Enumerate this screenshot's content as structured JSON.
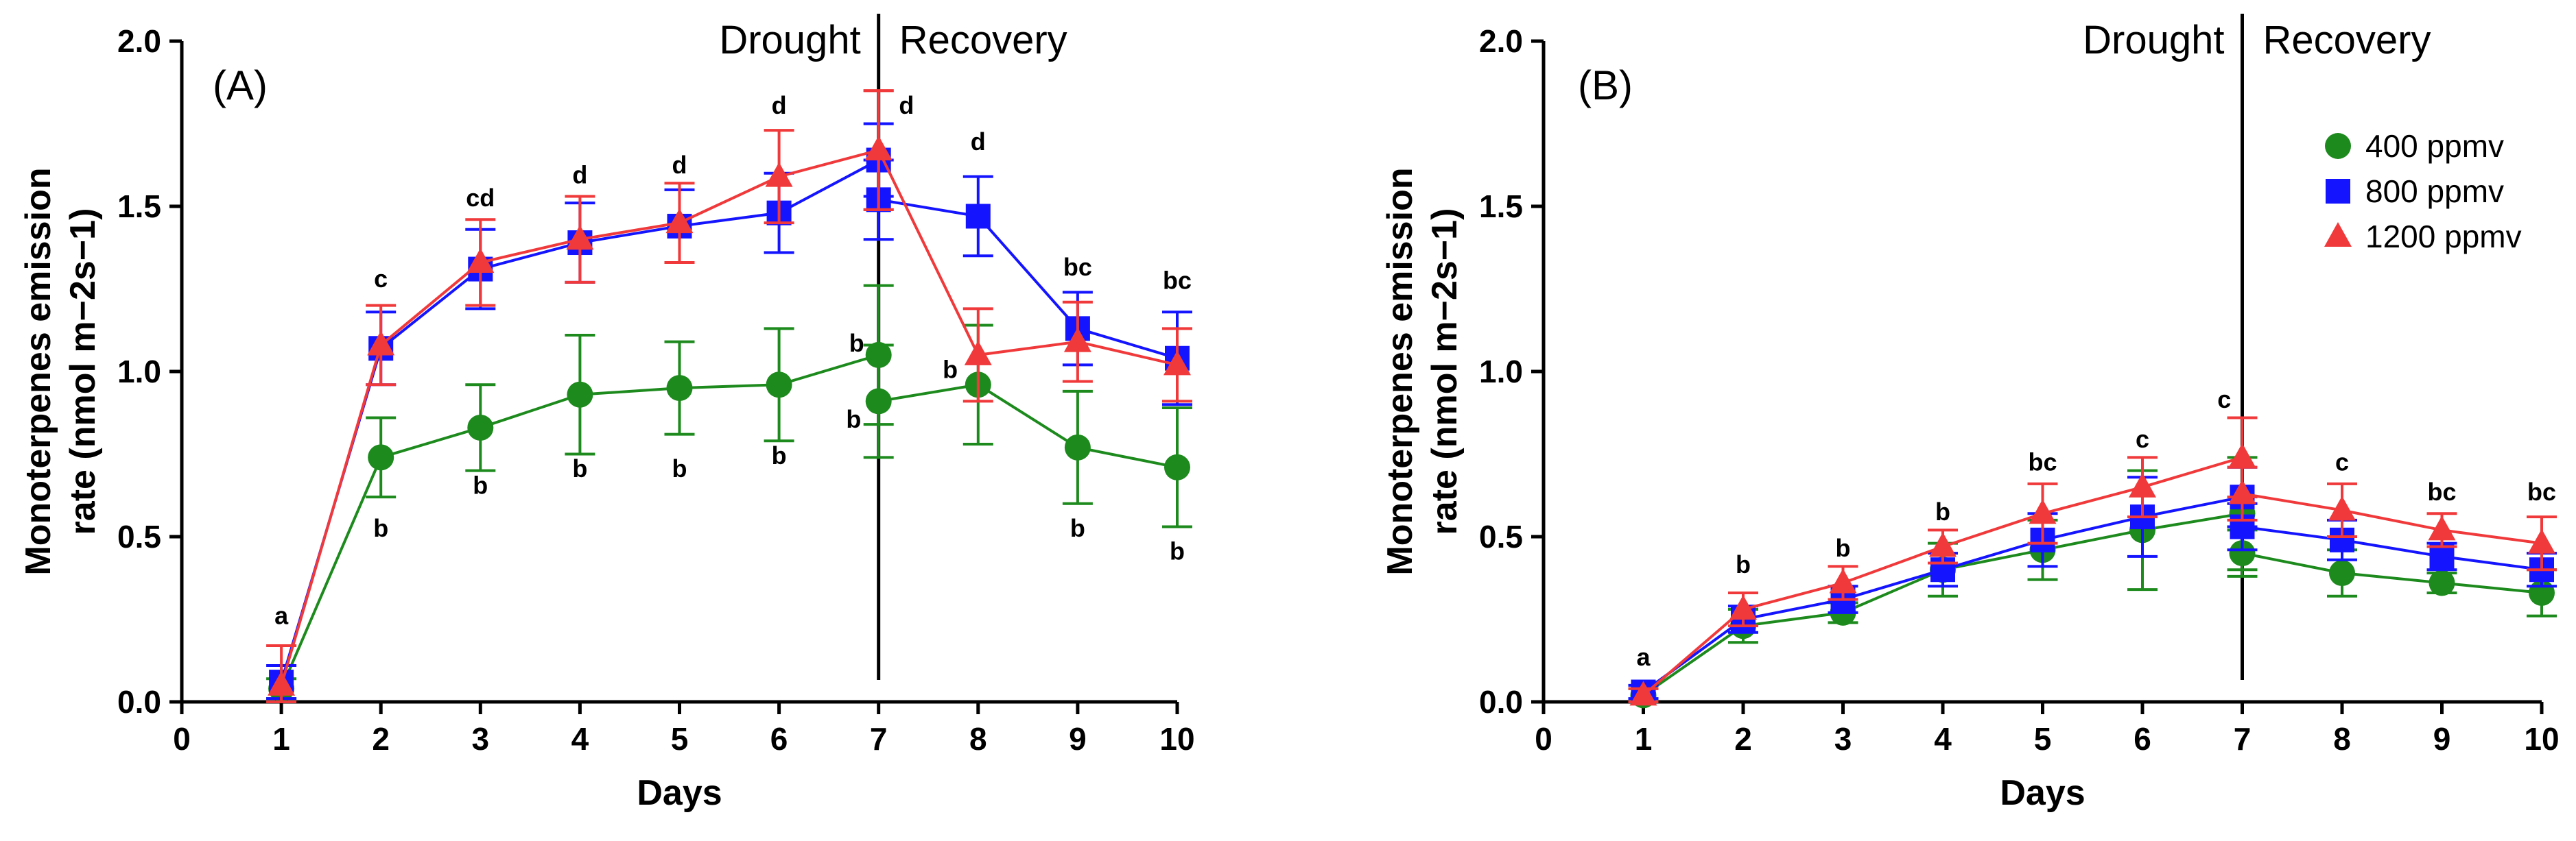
{
  "legend": [
    {
      "key": "c400",
      "label": "400 ppmv",
      "marker": "circle",
      "color": "#1d8a1d"
    },
    {
      "key": "c800",
      "label": "800 ppmv",
      "marker": "square",
      "color": "#1414ff"
    },
    {
      "key": "c1200",
      "label": "1200 ppmv",
      "marker": "triangle",
      "color": "#f0393a"
    }
  ],
  "chart_data": [
    {
      "type": "line",
      "panel_label": "(A)",
      "panel_letter": "A",
      "title": "",
      "xlabel": "Days",
      "ylabel_line1": "Monoterpenes emission",
      "ylabel_line2": "rate (nmol m−2s−1)",
      "xlim": [
        0,
        10
      ],
      "ylim": [
        0,
        2.0
      ],
      "xticks": [
        "0",
        "1",
        "2",
        "3",
        "4",
        "5",
        "6",
        "7",
        "8",
        "9",
        "10"
      ],
      "yticks": [
        "0.0",
        "0.5",
        "1.0",
        "1.5",
        "2.0"
      ],
      "phase_divider_x": 7,
      "phase_left": "Drought",
      "phase_right": "Recovery",
      "series": [
        {
          "name": "400 ppmv",
          "key": "c400",
          "x": [
            1,
            2,
            3,
            4,
            5,
            6,
            7,
            7,
            8,
            9,
            10
          ],
          "y": [
            0.04,
            0.74,
            0.83,
            0.93,
            0.95,
            0.96,
            1.05,
            0.91,
            0.96,
            0.77,
            0.71
          ],
          "err": [
            0.03,
            0.12,
            0.13,
            0.18,
            0.14,
            0.17,
            0.21,
            0.17,
            0.18,
            0.17,
            0.18
          ]
        },
        {
          "name": "800 ppmv",
          "key": "c800",
          "x": [
            1,
            2,
            3,
            4,
            5,
            6,
            7,
            7,
            8,
            9,
            10
          ],
          "y": [
            0.06,
            1.07,
            1.31,
            1.39,
            1.44,
            1.48,
            1.64,
            1.52,
            1.47,
            1.13,
            1.04
          ],
          "err": [
            0.05,
            0.11,
            0.12,
            0.12,
            0.11,
            0.12,
            0.11,
            0.12,
            0.12,
            0.11,
            0.14
          ]
        },
        {
          "name": "1200 ppmv",
          "key": "c1200",
          "x": [
            1,
            2,
            3,
            4,
            5,
            6,
            7,
            7,
            8,
            9,
            10
          ],
          "y": [
            0.05,
            1.08,
            1.33,
            1.4,
            1.45,
            1.59,
            1.67,
            1.67,
            1.05,
            1.09,
            1.02
          ],
          "err": [
            0.12,
            0.12,
            0.13,
            0.13,
            0.12,
            0.14,
            0.18,
            0.18,
            0.14,
            0.12,
            0.11
          ]
        }
      ],
      "annotations": [
        {
          "text": "a",
          "x": 1,
          "y": 0.235
        },
        {
          "text": "c",
          "x": 2,
          "y": 1.255
        },
        {
          "text": "cd",
          "x": 3,
          "y": 1.5
        },
        {
          "text": "d",
          "x": 4,
          "y": 1.57
        },
        {
          "text": "d",
          "x": 5,
          "y": 1.6
        },
        {
          "text": "d",
          "x": 6,
          "y": 1.78
        },
        {
          "text": "d",
          "x": 7.28,
          "y": 1.78
        },
        {
          "text": "d",
          "x": 8,
          "y": 1.67
        },
        {
          "text": "bc",
          "x": 9,
          "y": 1.29
        },
        {
          "text": "bc",
          "x": 10,
          "y": 1.25
        },
        {
          "text": "b",
          "x": 2,
          "y": 0.5
        },
        {
          "text": "b",
          "x": 3,
          "y": 0.63
        },
        {
          "text": "b",
          "x": 4,
          "y": 0.68
        },
        {
          "text": "b",
          "x": 5,
          "y": 0.68
        },
        {
          "text": "b",
          "x": 6,
          "y": 0.72
        },
        {
          "text": "b",
          "x": 6.78,
          "y": 1.06
        },
        {
          "text": "b",
          "x": 6.75,
          "y": 0.83
        },
        {
          "text": "b",
          "x": 7.72,
          "y": 0.98
        },
        {
          "text": "b",
          "x": 9,
          "y": 0.5
        },
        {
          "text": "b",
          "x": 10,
          "y": 0.43
        }
      ]
    },
    {
      "type": "line",
      "panel_label": "(B)",
      "panel_letter": "B",
      "title": "",
      "xlabel": "Days",
      "ylabel_line1": "Monoterpenes emission",
      "ylabel_line2": "rate (nmol m−2s−1)",
      "xlim": [
        0,
        10
      ],
      "ylim": [
        0,
        2.0
      ],
      "xticks": [
        "0",
        "1",
        "2",
        "3",
        "4",
        "5",
        "6",
        "7",
        "8",
        "9",
        "10"
      ],
      "yticks": [
        "0.0",
        "0.5",
        "1.0",
        "1.5",
        "2.0"
      ],
      "phase_divider_x": 7,
      "phase_left": "Drought",
      "phase_right": "Recovery",
      "legend_position": "top-right",
      "series": [
        {
          "name": "400 ppmv",
          "key": "c400",
          "x": [
            1,
            2,
            3,
            4,
            5,
            6,
            7,
            7,
            8,
            9,
            10
          ],
          "y": [
            0.02,
            0.23,
            0.27,
            0.4,
            0.46,
            0.52,
            0.57,
            0.45,
            0.39,
            0.36,
            0.33
          ],
          "err": [
            0.02,
            0.05,
            0.03,
            0.08,
            0.09,
            0.18,
            0.17,
            0.07,
            0.07,
            0.03,
            0.07
          ]
        },
        {
          "name": "800 ppmv",
          "key": "c800",
          "x": [
            1,
            2,
            3,
            4,
            5,
            6,
            7,
            7,
            8,
            9,
            10
          ],
          "y": [
            0.03,
            0.25,
            0.31,
            0.4,
            0.49,
            0.56,
            0.62,
            0.53,
            0.49,
            0.44,
            0.4
          ],
          "err": [
            0.02,
            0.04,
            0.04,
            0.05,
            0.08,
            0.12,
            0.09,
            0.07,
            0.06,
            0.04,
            0.05
          ]
        },
        {
          "name": "1200 ppmv",
          "key": "c1200",
          "x": [
            1,
            2,
            3,
            4,
            5,
            6,
            7,
            7,
            8,
            9,
            10
          ],
          "y": [
            0.02,
            0.28,
            0.36,
            0.47,
            0.57,
            0.65,
            0.74,
            0.63,
            0.58,
            0.52,
            0.48
          ],
          "err": [
            0.02,
            0.05,
            0.05,
            0.05,
            0.09,
            0.09,
            0.12,
            0.08,
            0.08,
            0.05,
            0.08
          ]
        }
      ],
      "annotations": [
        {
          "text": "a",
          "x": 1,
          "y": 0.11
        },
        {
          "text": "b",
          "x": 2,
          "y": 0.39
        },
        {
          "text": "b",
          "x": 3,
          "y": 0.44
        },
        {
          "text": "b",
          "x": 4,
          "y": 0.55
        },
        {
          "text": "bc",
          "x": 5,
          "y": 0.7
        },
        {
          "text": "c",
          "x": 6,
          "y": 0.77
        },
        {
          "text": "c",
          "x": 6.82,
          "y": 0.89
        },
        {
          "text": "c",
          "x": 8,
          "y": 0.7
        },
        {
          "text": "bc",
          "x": 9,
          "y": 0.61
        },
        {
          "text": "bc",
          "x": 10,
          "y": 0.61
        }
      ]
    }
  ]
}
